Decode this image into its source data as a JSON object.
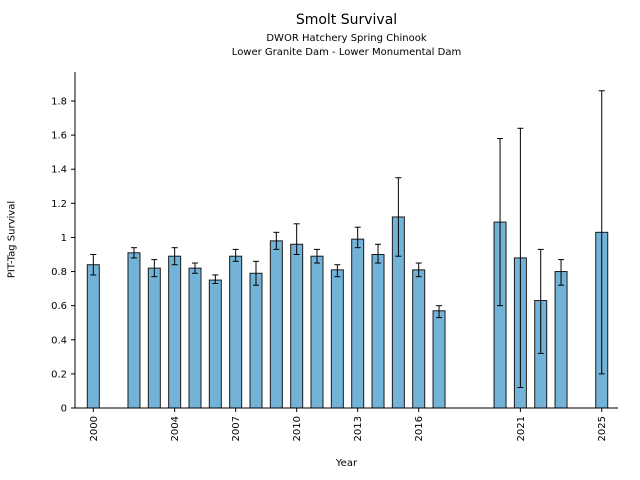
{
  "chart_data": {
    "type": "bar",
    "title": "Smolt Survival",
    "subtitle1": "DWOR Hatchery Spring Chinook",
    "subtitle2": "Lower Granite Dam - Lower Monumental Dam",
    "xlabel": "Year",
    "ylabel": "PIT-Tag Survival",
    "x_ticks": [
      2000,
      2004,
      2007,
      2010,
      2013,
      2016,
      2021,
      2025
    ],
    "y_ticks": [
      0,
      0.2,
      0.4,
      0.6,
      0.8,
      1,
      1.2,
      1.4,
      1.6,
      1.8
    ],
    "xlim": [
      1999.1,
      2025.8
    ],
    "ylim": [
      0,
      1.97
    ],
    "grid": false,
    "legend": "none",
    "bar_color": "#74b3d8",
    "bar_edge_color": "#1a1a1a",
    "error_bar_color": "#000000",
    "points": [
      {
        "year": 2000,
        "value": 0.84,
        "err_low": 0.78,
        "err_high": 0.9
      },
      {
        "year": 2002,
        "value": 0.91,
        "err_low": 0.88,
        "err_high": 0.94
      },
      {
        "year": 2003,
        "value": 0.82,
        "err_low": 0.77,
        "err_high": 0.87
      },
      {
        "year": 2004,
        "value": 0.89,
        "err_low": 0.84,
        "err_high": 0.94
      },
      {
        "year": 2005,
        "value": 0.82,
        "err_low": 0.79,
        "err_high": 0.85
      },
      {
        "year": 2006,
        "value": 0.75,
        "err_low": 0.73,
        "err_high": 0.78
      },
      {
        "year": 2007,
        "value": 0.89,
        "err_low": 0.86,
        "err_high": 0.93
      },
      {
        "year": 2008,
        "value": 0.79,
        "err_low": 0.72,
        "err_high": 0.86
      },
      {
        "year": 2009,
        "value": 0.98,
        "err_low": 0.93,
        "err_high": 1.03
      },
      {
        "year": 2010,
        "value": 0.96,
        "err_low": 0.9,
        "err_high": 1.08
      },
      {
        "year": 2011,
        "value": 0.89,
        "err_low": 0.85,
        "err_high": 0.93
      },
      {
        "year": 2012,
        "value": 0.81,
        "err_low": 0.77,
        "err_high": 0.84
      },
      {
        "year": 2013,
        "value": 0.99,
        "err_low": 0.94,
        "err_high": 1.06
      },
      {
        "year": 2014,
        "value": 0.9,
        "err_low": 0.85,
        "err_high": 0.96
      },
      {
        "year": 2015,
        "value": 1.12,
        "err_low": 0.89,
        "err_high": 1.35
      },
      {
        "year": 2016,
        "value": 0.81,
        "err_low": 0.77,
        "err_high": 0.85
      },
      {
        "year": 2017,
        "value": 0.57,
        "err_low": 0.53,
        "err_high": 0.6
      },
      {
        "year": 2020,
        "value": 1.09,
        "err_low": 0.6,
        "err_high": 1.58
      },
      {
        "year": 2021,
        "value": 0.88,
        "err_low": 0.12,
        "err_high": 1.64
      },
      {
        "year": 2022,
        "value": 0.63,
        "err_low": 0.32,
        "err_high": 0.93
      },
      {
        "year": 2023,
        "value": 0.8,
        "err_low": 0.72,
        "err_high": 0.87
      },
      {
        "year": 2025,
        "value": 1.03,
        "err_low": 0.2,
        "err_high": 1.86
      }
    ]
  }
}
